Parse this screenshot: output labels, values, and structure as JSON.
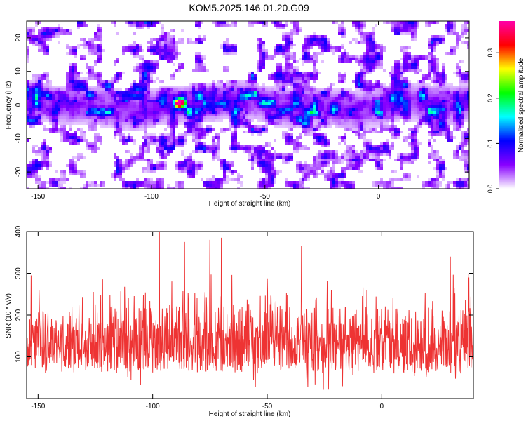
{
  "figure": {
    "title": "KOM5.2025.146.01.20.G09"
  },
  "chart_data": [
    {
      "type": "heatmap",
      "xlabel": "Height of straight line (km)",
      "ylabel": "Frequency (Hz)",
      "xlim": [
        -155,
        40
      ],
      "ylim": [
        -25,
        25
      ],
      "x_ticks": [
        -150,
        -100,
        -50,
        0
      ],
      "y_ticks": [
        -20,
        -10,
        0,
        10,
        20
      ],
      "band": {
        "center_hz": 0,
        "half_width_hz": 6
      },
      "peak": {
        "x": -88,
        "y": 0.5
      },
      "colorbar": {
        "label": "Normalized spectral amplitude",
        "range": [
          0,
          0.37
        ],
        "ticks": [
          0.0,
          0.1,
          0.2,
          0.3
        ],
        "colormap": [
          "#ffffff",
          "#8800ff",
          "#0000ff",
          "#00ffff",
          "#00ff00",
          "#ffff00",
          "#ff0000",
          "#ff00aa"
        ]
      }
    },
    {
      "type": "line",
      "xlabel": "Height of straight line (km)",
      "ylabel": "SNR (10 * v/v)",
      "xlim": [
        -155,
        40
      ],
      "ylim": [
        0,
        400
      ],
      "x_ticks": [
        -150,
        -100,
        -50,
        0
      ],
      "y_ticks": [
        100,
        200,
        300,
        400
      ],
      "series": [
        {
          "color": "#ee3333",
          "mean": 120,
          "spread": 60,
          "notable_peaks": [
            {
              "x": -153,
              "y": 295
            },
            {
              "x": -97,
              "y": 400
            },
            {
              "x": -86,
              "y": 375
            },
            {
              "x": -75,
              "y": 380
            },
            {
              "x": -70,
              "y": 385
            },
            {
              "x": -35,
              "y": 365
            },
            {
              "x": 30,
              "y": 340
            },
            {
              "x": 38,
              "y": 290
            }
          ]
        }
      ]
    }
  ]
}
